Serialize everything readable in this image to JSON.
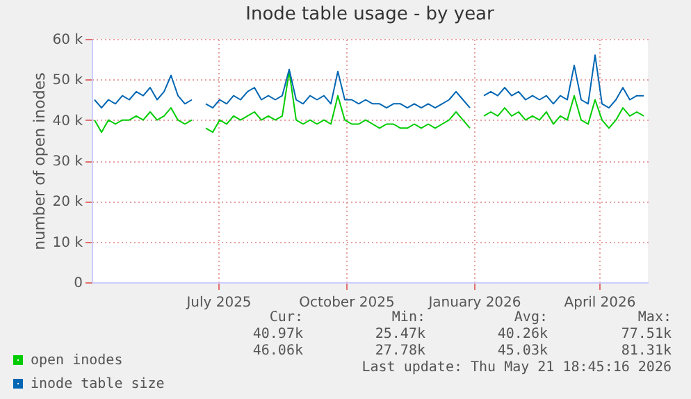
{
  "chart_data": {
    "type": "line",
    "title": "Inode table usage - by year",
    "ylabel": "number of open inodes",
    "x": [
      "2025-04-18",
      "2025-04-23",
      "2025-04-28",
      "2025-05-03",
      "2025-05-08",
      "2025-05-13",
      "2025-05-18",
      "2025-05-23",
      "2025-05-28",
      "2025-06-02",
      "2025-06-07",
      "2025-06-12",
      "2025-06-17",
      "2025-06-22",
      "2025-06-27",
      "2025-07-02",
      "2025-07-07",
      "2025-07-12",
      "2025-07-17",
      "2025-07-22",
      "2025-07-27",
      "2025-08-01",
      "2025-08-06",
      "2025-08-11",
      "2025-08-16",
      "2025-08-21",
      "2025-08-26",
      "2025-08-31",
      "2025-09-05",
      "2025-09-10",
      "2025-09-15",
      "2025-09-20",
      "2025-09-25",
      "2025-09-30",
      "2025-10-05",
      "2025-10-10",
      "2025-10-15",
      "2025-10-20",
      "2025-10-25",
      "2025-10-30",
      "2025-11-04",
      "2025-11-09",
      "2025-11-14",
      "2025-11-19",
      "2025-11-24",
      "2025-11-29",
      "2025-12-04",
      "2025-12-09",
      "2025-12-14",
      "2025-12-19",
      "2025-12-24",
      "2025-12-29",
      "2026-01-03",
      "2026-01-08",
      "2026-01-13",
      "2026-01-18",
      "2026-01-23",
      "2026-01-28",
      "2026-02-02",
      "2026-02-07",
      "2026-02-12",
      "2026-02-17",
      "2026-02-22",
      "2026-02-27",
      "2026-03-04",
      "2026-03-09",
      "2026-03-14",
      "2026-03-19",
      "2026-03-24",
      "2026-03-29",
      "2026-04-03",
      "2026-04-08",
      "2026-04-13",
      "2026-04-18",
      "2026-04-23",
      "2026-04-28",
      "2026-05-03",
      "2026-05-08",
      "2026-05-13",
      "2026-05-18"
    ],
    "series": [
      {
        "name": "open inodes",
        "color": "#00cc00",
        "values": [
          40000,
          37000,
          40000,
          39000,
          40000,
          40000,
          41000,
          40000,
          42000,
          40000,
          41000,
          43000,
          40000,
          39000,
          40000,
          null,
          38000,
          37000,
          40000,
          39000,
          41000,
          40000,
          41000,
          42000,
          40000,
          41000,
          40000,
          41000,
          52000,
          40000,
          39000,
          40000,
          39000,
          40000,
          39000,
          46000,
          40000,
          39000,
          39000,
          40000,
          39000,
          38000,
          39000,
          39000,
          38000,
          38000,
          39000,
          38000,
          39000,
          38000,
          39000,
          40000,
          42000,
          40000,
          38000,
          null,
          41000,
          42000,
          41000,
          43000,
          41000,
          42000,
          40000,
          41000,
          40000,
          42000,
          39000,
          41000,
          40000,
          46000,
          40000,
          39000,
          45000,
          40000,
          38000,
          40000,
          43000,
          41000,
          42000,
          41000
        ]
      },
      {
        "name": "inode table size",
        "color": "#0066b3",
        "values": [
          45000,
          43000,
          45000,
          44000,
          46000,
          45000,
          47000,
          46000,
          48000,
          45000,
          47000,
          51000,
          46000,
          44000,
          45000,
          null,
          44000,
          43000,
          45000,
          44000,
          46000,
          45000,
          47000,
          48000,
          45000,
          46000,
          45000,
          46000,
          52500,
          45000,
          44000,
          46000,
          45000,
          46000,
          44000,
          52000,
          45000,
          45000,
          44000,
          45000,
          44000,
          44000,
          43000,
          44000,
          44000,
          43000,
          44000,
          43000,
          44000,
          43000,
          44000,
          45000,
          47000,
          45000,
          43000,
          null,
          46000,
          47000,
          46000,
          48000,
          46000,
          47000,
          45000,
          46000,
          45000,
          46000,
          44000,
          46000,
          45000,
          53500,
          45000,
          44000,
          56000,
          44000,
          43000,
          45000,
          48000,
          45000,
          46000,
          46000
        ]
      }
    ],
    "xlim": [
      "2025-04-16",
      "2026-05-21"
    ],
    "xticks": [
      {
        "value": "2025-07-16",
        "label": "July 2025"
      },
      {
        "value": "2025-10-16",
        "label": "October 2025"
      },
      {
        "value": "2026-01-16",
        "label": "January 2026"
      },
      {
        "value": "2026-04-16",
        "label": "April 2026"
      }
    ],
    "ylim": [
      0,
      60000
    ],
    "yticks": [
      0,
      {
        "value": 10000,
        "label": "10 k"
      },
      {
        "value": 20000,
        "label": "20 k"
      },
      {
        "value": 30000,
        "label": "30 k"
      },
      {
        "value": 40000,
        "label": "40 k"
      },
      {
        "value": 50000,
        "label": "50 k"
      },
      {
        "value": 60000,
        "label": "60 k"
      }
    ],
    "grid": true,
    "legend": "bottom",
    "annotations": [
      "Cur:",
      "Min:",
      "Avg:",
      "Max:",
      "40.97k",
      "25.47k",
      "40.26k",
      "77.51k",
      "46.06k",
      "27.78k",
      "45.03k",
      "81.31k",
      "Last update: Thu May 21 18:45:16 2026"
    ]
  }
}
